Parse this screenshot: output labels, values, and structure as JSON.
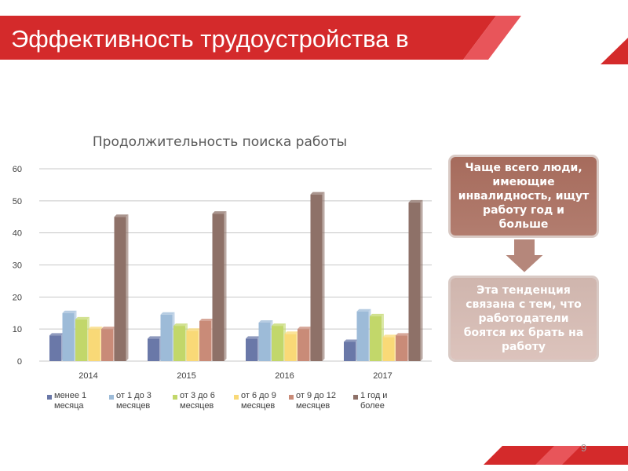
{
  "slide": {
    "title": "Эффективность трудоустройства в",
    "page_number": "9"
  },
  "chart_data": {
    "type": "bar",
    "title": "Продолжительность поиска работы",
    "categories": [
      "2014",
      "2015",
      "2016",
      "2017"
    ],
    "ylim": [
      0,
      60
    ],
    "yticks": [
      0,
      10,
      20,
      30,
      40,
      50,
      60
    ],
    "grid": true,
    "legend_position": "bottom",
    "series": [
      {
        "name": "менее 1 месяца",
        "color": "#6a78a8",
        "values": [
          8,
          7,
          7,
          6
        ]
      },
      {
        "name": "от 1 до 3 месяцев",
        "color": "#9dbbd8",
        "values": [
          15,
          14.5,
          12,
          15.5
        ]
      },
      {
        "name": "от 3 до 6 месяцев",
        "color": "#c2d76a",
        "values": [
          13,
          11,
          11,
          14
        ]
      },
      {
        "name": "от 6 до 9 месяцев",
        "color": "#f9d977",
        "values": [
          10,
          9.5,
          8.5,
          7.5
        ]
      },
      {
        "name": "от 9 до 12 месяцев",
        "color": "#c98b78",
        "values": [
          10,
          12.5,
          10,
          8
        ]
      },
      {
        "name": "1 год и более",
        "color": "#8e7168",
        "values": [
          45,
          46,
          52,
          49.5
        ]
      }
    ]
  },
  "callouts": {
    "top": "Чаще всего люди, имеющие инвалидность, ищут работу год и больше",
    "bottom": "Эта тенденция связана с тем, что работодатели боятся их брать на работу"
  },
  "colors": {
    "banner_red": "#d42a2b",
    "callout_top": "#a66b5c",
    "callout_bottom": "#d5bcb4"
  }
}
